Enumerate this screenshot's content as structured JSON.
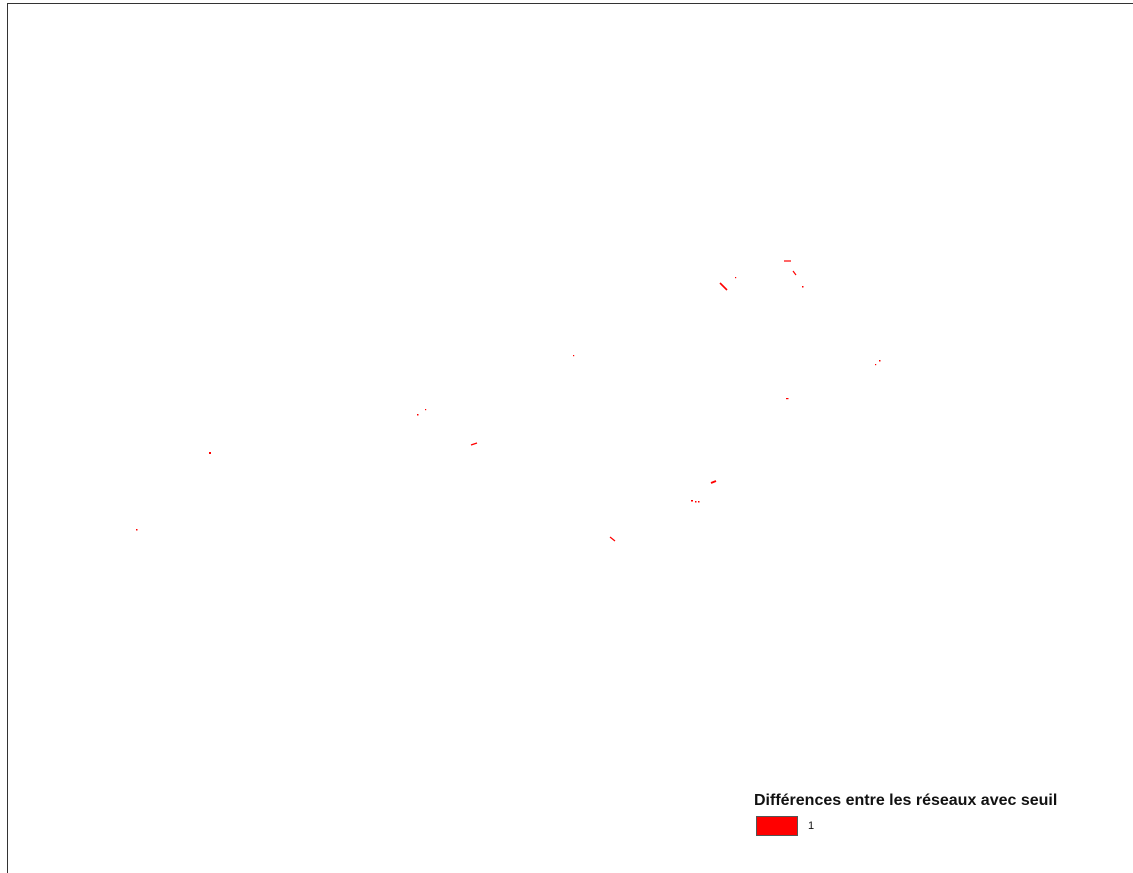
{
  "map": {
    "difference_color": "#ff0000",
    "frame_color": "#333333"
  },
  "legend": {
    "title": "Différences entre les réseaux avec seuil",
    "items": [
      {
        "label": "1",
        "color": "#ff0000"
      }
    ]
  }
}
